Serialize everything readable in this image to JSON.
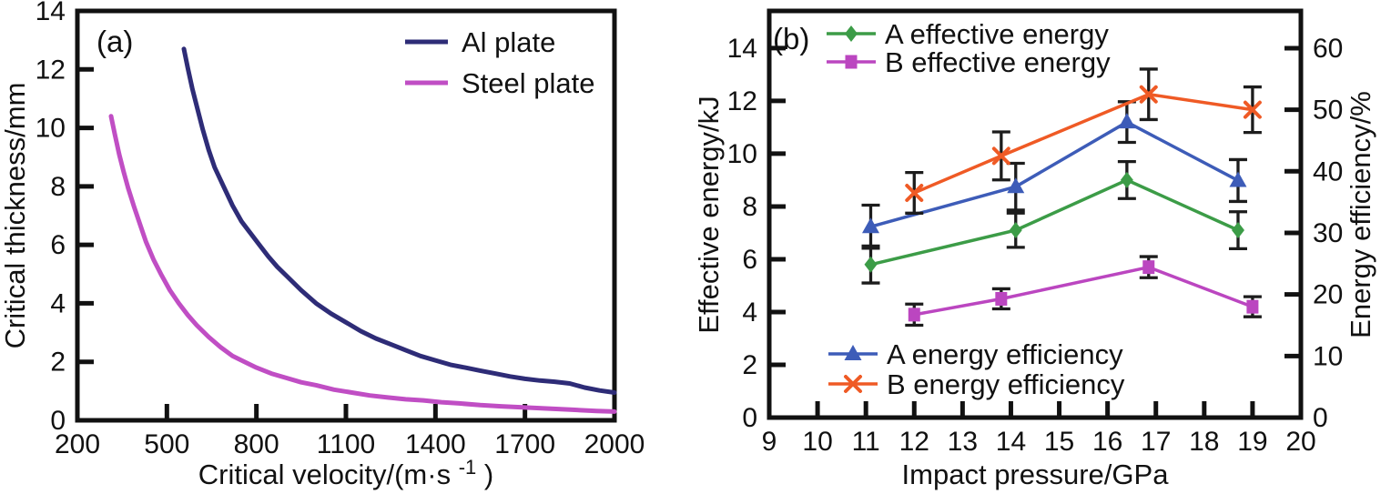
{
  "chart_data": [
    {
      "type": "line",
      "panel_label": "(a)",
      "xlabel": "Critical velocity/(m·s⁻¹)",
      "xlabel_parts": {
        "main": "Critical velocity/(m·s",
        "sup": "-1",
        "end": ")"
      },
      "ylabel": "Critical thickness/mm",
      "xlim": [
        200,
        2000
      ],
      "ylim": [
        0,
        14
      ],
      "xticks": [
        200,
        500,
        800,
        1100,
        1400,
        1700,
        2000
      ],
      "yticks": [
        0,
        2,
        4,
        6,
        8,
        10,
        12,
        14
      ],
      "grid": false,
      "legend_position": "top-right",
      "series": [
        {
          "name": "Al plate",
          "color": "#2e2c77",
          "x": [
            557,
            570,
            585,
            600,
            620,
            640,
            660,
            690,
            720,
            750,
            780,
            810,
            840,
            870,
            900,
            950,
            1000,
            1050,
            1100,
            1150,
            1200,
            1250,
            1300,
            1350,
            1400,
            1450,
            1500,
            1550,
            1600,
            1650,
            1700,
            1750,
            1800,
            1850,
            1900,
            1950,
            2000
          ],
          "y": [
            12.7,
            12.05,
            11.35,
            10.75,
            9.95,
            9.25,
            8.65,
            8.0,
            7.35,
            6.8,
            6.4,
            6.0,
            5.6,
            5.25,
            4.95,
            4.45,
            4.0,
            3.65,
            3.35,
            3.05,
            2.8,
            2.6,
            2.4,
            2.2,
            2.05,
            1.9,
            1.8,
            1.7,
            1.6,
            1.5,
            1.42,
            1.36,
            1.32,
            1.26,
            1.12,
            1.02,
            0.95
          ]
        },
        {
          "name": "Steel plate",
          "color": "#c04ec4",
          "x": [
            313,
            325,
            340,
            355,
            370,
            390,
            410,
            430,
            455,
            480,
            510,
            540,
            570,
            600,
            640,
            680,
            720,
            760,
            800,
            850,
            900,
            950,
            1000,
            1060,
            1120,
            1180,
            1240,
            1300,
            1360,
            1420,
            1480,
            1550,
            1620,
            1700,
            1780,
            1860,
            1940,
            2000
          ],
          "y": [
            10.4,
            9.8,
            9.1,
            8.5,
            7.95,
            7.3,
            6.7,
            6.1,
            5.5,
            5.0,
            4.45,
            4.0,
            3.6,
            3.25,
            2.85,
            2.5,
            2.2,
            2.0,
            1.8,
            1.6,
            1.45,
            1.3,
            1.2,
            1.05,
            0.95,
            0.85,
            0.78,
            0.72,
            0.68,
            0.62,
            0.58,
            0.52,
            0.48,
            0.44,
            0.4,
            0.36,
            0.32,
            0.3
          ]
        }
      ]
    },
    {
      "type": "line",
      "panel_label": "(b)",
      "xlabel": "Impact pressure/GPa",
      "ylabel_left": "Effective energy/kJ",
      "ylabel_right": "Energy efficiency/%",
      "xlim": [
        9,
        20
      ],
      "ylim_left": [
        0,
        15.41
      ],
      "ylim_right": [
        0,
        66.05
      ],
      "xticks": [
        9,
        10,
        11,
        12,
        13,
        14,
        15,
        16,
        17,
        18,
        19,
        20
      ],
      "yticks_left": [
        0,
        2,
        4,
        6,
        8,
        10,
        12,
        14
      ],
      "yticks_right": [
        0,
        10,
        20,
        30,
        40,
        50,
        60
      ],
      "grid": false,
      "series": [
        {
          "name": "A effective energy",
          "axis": "left",
          "marker": "diamond",
          "color": "#3c9c47",
          "x": [
            11.1,
            14.1,
            16.4,
            18.7
          ],
          "y": [
            5.8,
            7.1,
            9.0,
            7.1
          ],
          "yerr": [
            0.7,
            0.65,
            0.7,
            0.7
          ]
        },
        {
          "name": "B effective energy",
          "axis": "left",
          "marker": "square",
          "color": "#bb46c0",
          "x": [
            12.0,
            13.8,
            16.85,
            19.0
          ],
          "y": [
            3.9,
            4.5,
            5.7,
            4.2
          ],
          "yerr": [
            0.4,
            0.38,
            0.4,
            0.38
          ]
        },
        {
          "name": "A energy efficiency",
          "axis": "right",
          "marker": "triangle",
          "color": "#3d5cb8",
          "x": [
            11.1,
            14.1,
            16.4,
            18.7
          ],
          "y": [
            31,
            37.5,
            48,
            38.5
          ],
          "yerr": [
            3.5,
            3.8,
            3.3,
            3.4
          ]
        },
        {
          "name": "B energy efficiency",
          "axis": "right",
          "marker": "x",
          "color": "#ef5a25",
          "x": [
            12.0,
            13.8,
            16.85,
            19.0
          ],
          "y": [
            36.5,
            42.5,
            52.5,
            50.0
          ],
          "yerr": [
            3.3,
            3.9,
            4.1,
            3.7
          ]
        }
      ]
    }
  ]
}
